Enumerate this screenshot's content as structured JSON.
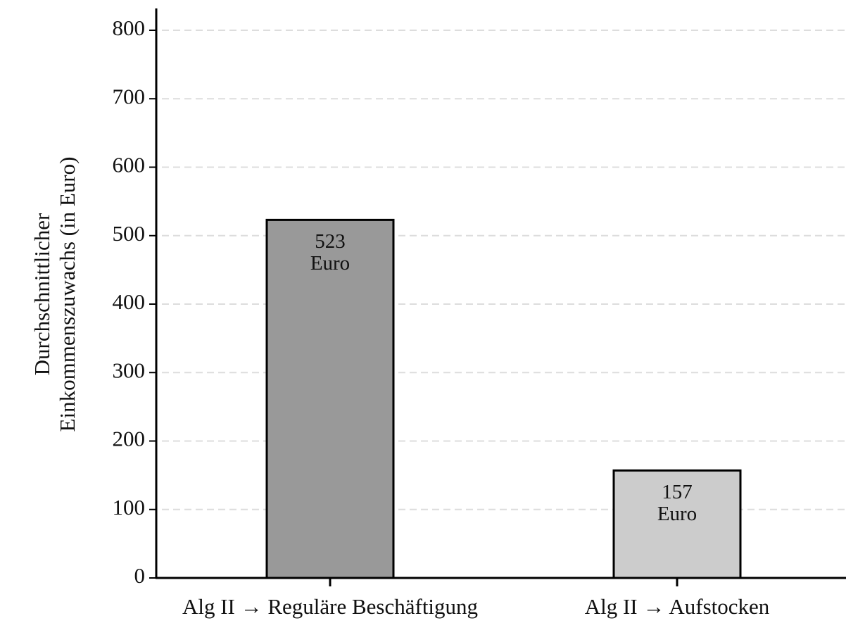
{
  "chart_data": {
    "type": "bar",
    "ylabel": "Durchschnittlicher\nEinkommenszuwachs (in Euro)",
    "categories": [
      "Alg II → Reguläre Beschäftigung",
      "Alg II → Aufstocken"
    ],
    "values": [
      523,
      157
    ],
    "value_labels": [
      "523\nEuro",
      "157\nEuro"
    ],
    "colors": [
      "#999999",
      "#cccccc"
    ],
    "ylim": [
      0,
      800
    ],
    "yticks": [
      0,
      100,
      200,
      300,
      400,
      500,
      600,
      700,
      800
    ],
    "grid": true
  }
}
